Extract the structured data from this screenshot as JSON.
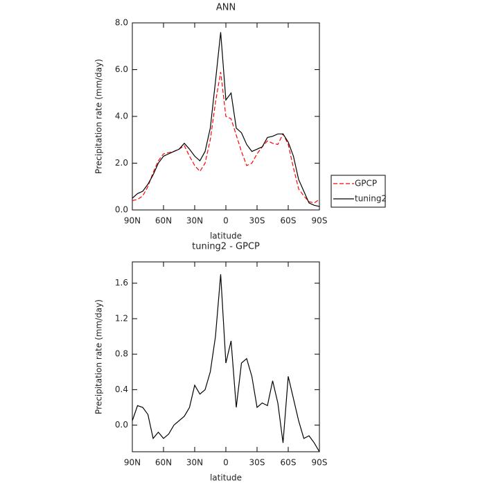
{
  "chart_data": [
    {
      "type": "line",
      "title": "ANN",
      "xlabel": "latitude",
      "ylabel": "Precipitation rate (mm/day)",
      "x": [
        90,
        85,
        80,
        75,
        70,
        65,
        60,
        55,
        50,
        45,
        40,
        35,
        30,
        25,
        20,
        15,
        10,
        5,
        0,
        -5,
        -10,
        -15,
        -20,
        -25,
        -30,
        -35,
        -40,
        -45,
        -50,
        -55,
        -60,
        -65,
        -70,
        -75,
        -80,
        -85,
        -90
      ],
      "xlim": [
        90,
        -90
      ],
      "xticks": [
        {
          "value": 90,
          "label": "90N"
        },
        {
          "value": 60,
          "label": "60N"
        },
        {
          "value": 30,
          "label": "30N"
        },
        0,
        {
          "value": -30,
          "label": "30S"
        },
        {
          "value": -60,
          "label": "60S"
        },
        {
          "value": -90,
          "label": "90S"
        }
      ],
      "ylim": [
        0,
        8
      ],
      "yticks": [
        {
          "value": 0,
          "label": "0.0"
        },
        {
          "value": 2,
          "label": "2.0"
        },
        {
          "value": 4,
          "label": "4.0"
        },
        {
          "value": 6,
          "label": "6.0"
        },
        {
          "value": 8,
          "label": "8.0"
        }
      ],
      "legend": "outside right",
      "series": [
        {
          "name": "GPCP",
          "color": "#ff0000",
          "dash": true,
          "values": [
            0.4,
            0.45,
            0.6,
            1.0,
            1.6,
            2.1,
            2.4,
            2.45,
            2.5,
            2.6,
            2.75,
            2.3,
            1.9,
            1.65,
            2.0,
            3.0,
            4.6,
            5.9,
            4.0,
            3.9,
            3.2,
            2.5,
            1.9,
            2.0,
            2.4,
            2.7,
            2.95,
            2.85,
            2.8,
            3.25,
            2.8,
            1.8,
            0.9,
            0.6,
            0.35,
            0.3,
            0.45
          ]
        },
        {
          "name": "tuning2",
          "color": "#000000",
          "dash": false,
          "values": [
            0.5,
            0.7,
            0.8,
            1.1,
            1.5,
            2.0,
            2.3,
            2.4,
            2.5,
            2.6,
            2.85,
            2.6,
            2.3,
            2.1,
            2.5,
            3.5,
            5.5,
            7.6,
            4.7,
            5.0,
            3.5,
            3.3,
            2.8,
            2.5,
            2.6,
            2.7,
            3.1,
            3.15,
            3.25,
            3.25,
            2.9,
            2.3,
            1.3,
            0.8,
            0.3,
            0.2,
            0.15
          ]
        }
      ]
    },
    {
      "type": "line",
      "title": "tuning2 - GPCP",
      "xlabel": "latitude",
      "ylabel": "Precipitation rate (mm/day)",
      "x": [
        90,
        85,
        80,
        75,
        70,
        65,
        60,
        55,
        50,
        45,
        40,
        35,
        30,
        25,
        20,
        15,
        10,
        5,
        0,
        -5,
        -10,
        -15,
        -20,
        -25,
        -30,
        -35,
        -40,
        -45,
        -50,
        -55,
        -60,
        -65,
        -70,
        -75,
        -80,
        -85,
        -90
      ],
      "xlim": [
        90,
        -90
      ],
      "xticks": [
        {
          "value": 90,
          "label": "90N"
        },
        {
          "value": 60,
          "label": "60N"
        },
        {
          "value": 30,
          "label": "30N"
        },
        0,
        {
          "value": -30,
          "label": "30S"
        },
        {
          "value": -60,
          "label": "60S"
        },
        {
          "value": -90,
          "label": "90S"
        }
      ],
      "ylim": [
        -0.3,
        1.84
      ],
      "yticks": [
        {
          "value": 0,
          "label": "0.0"
        },
        {
          "value": 0.4,
          "label": "0.4"
        },
        {
          "value": 0.8,
          "label": "0.8"
        },
        {
          "value": 1.2,
          "label": "1.2"
        },
        {
          "value": 1.6,
          "label": "1.6"
        }
      ],
      "series": [
        {
          "color": "#000000",
          "dash": false,
          "values": [
            0.05,
            0.22,
            0.2,
            0.12,
            -0.15,
            -0.08,
            -0.15,
            -0.1,
            0.0,
            0.05,
            0.1,
            0.2,
            0.45,
            0.35,
            0.4,
            0.6,
            1.0,
            1.7,
            0.7,
            0.95,
            0.2,
            0.7,
            0.75,
            0.55,
            0.2,
            0.25,
            0.22,
            0.5,
            0.25,
            -0.2,
            0.55,
            0.3,
            0.05,
            -0.15,
            -0.12,
            -0.2,
            -0.3
          ]
        }
      ]
    }
  ]
}
